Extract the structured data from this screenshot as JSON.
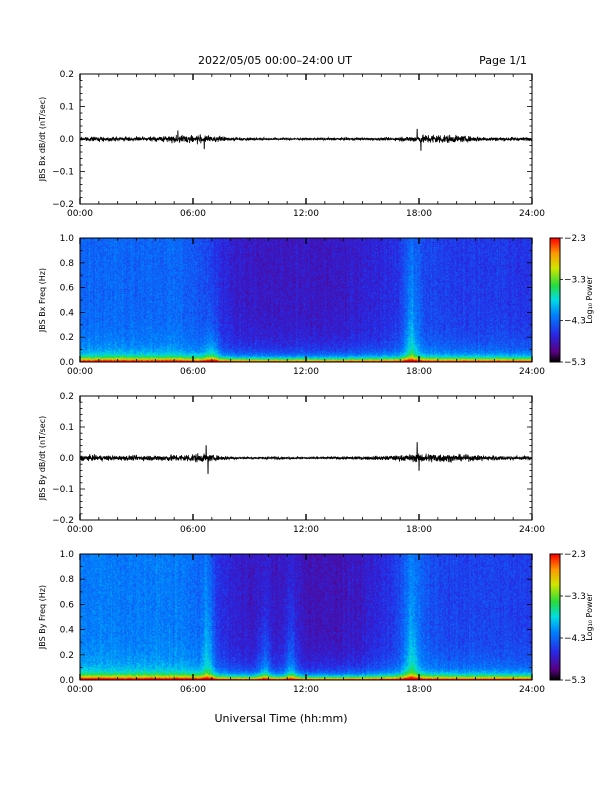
{
  "header": {
    "title": "2022/05/05  00:00–24:00 UT",
    "page": "Page 1/1"
  },
  "xlabel": "Universal Time (hh:mm)",
  "x_ticks": [
    "00:00",
    "06:00",
    "12:00",
    "18:00",
    "24:00"
  ],
  "chart_data": [
    {
      "type": "line",
      "name": "bx-waveform",
      "ylabel": "JBS Bx dB/dt (nT/sec)",
      "xlim": [
        0,
        24
      ],
      "ylim": [
        -0.2,
        0.2
      ],
      "y_ticks": [
        "0.2",
        "0.1",
        "0.0",
        "−0.1",
        "−0.2"
      ],
      "amplitude_by_hour": [
        0.008,
        0.008,
        0.008,
        0.008,
        0.009,
        0.015,
        0.016,
        0.01,
        0.006,
        0.005,
        0.004,
        0.004,
        0.004,
        0.005,
        0.005,
        0.005,
        0.006,
        0.012,
        0.02,
        0.014,
        0.01,
        0.008,
        0.007,
        0.007
      ],
      "spikes": [
        [
          5.2,
          0.025
        ],
        [
          6.6,
          -0.03
        ],
        [
          17.9,
          0.03
        ],
        [
          18.1,
          -0.035
        ]
      ]
    },
    {
      "type": "heatmap",
      "name": "bx-spectrogram",
      "ylabel": "JBS Bx Freq (Hz)",
      "xlim": [
        0,
        24
      ],
      "ylim": [
        0,
        1
      ],
      "y_ticks": [
        "1.0",
        "0.8",
        "0.6",
        "0.4",
        "0.2",
        "0.0"
      ],
      "colorbar": {
        "label": "Log₁₀ Power",
        "range": [
          -5.3,
          -2.3
        ],
        "ticks": [
          "−2.3",
          "−3.3",
          "−4.3",
          "−5.3"
        ]
      },
      "background_by_hour": [
        -4.3,
        -4.3,
        -4.3,
        -4.3,
        -4.3,
        -4.3,
        -4.4,
        -4.6,
        -4.75,
        -4.8,
        -4.8,
        -4.8,
        -4.8,
        -4.8,
        -4.75,
        -4.7,
        -4.6,
        -4.4,
        -4.5,
        -4.55,
        -4.55,
        -4.55,
        -4.55,
        -4.6
      ],
      "enhancements": [
        [
          7.0,
          0.25
        ],
        [
          17.6,
          0.7
        ]
      ]
    },
    {
      "type": "line",
      "name": "by-waveform",
      "ylabel": "JBS By dB/dt (nT/sec)",
      "xlim": [
        0,
        24
      ],
      "ylim": [
        -0.2,
        0.2
      ],
      "y_ticks": [
        "0.2",
        "0.1",
        "0.0",
        "−0.1",
        "−0.2"
      ],
      "amplitude_by_hour": [
        0.012,
        0.011,
        0.01,
        0.01,
        0.012,
        0.014,
        0.018,
        0.01,
        0.005,
        0.004,
        0.004,
        0.004,
        0.004,
        0.005,
        0.006,
        0.008,
        0.01,
        0.016,
        0.02,
        0.014,
        0.012,
        0.01,
        0.008,
        0.008
      ],
      "spikes": [
        [
          6.7,
          0.04
        ],
        [
          6.8,
          -0.05
        ],
        [
          17.9,
          0.05
        ],
        [
          18.0,
          -0.04
        ]
      ]
    },
    {
      "type": "heatmap",
      "name": "by-spectrogram",
      "ylabel": "JBS By Freq (Hz)",
      "xlim": [
        0,
        24
      ],
      "ylim": [
        0,
        1
      ],
      "y_ticks": [
        "1.0",
        "0.8",
        "0.6",
        "0.4",
        "0.2",
        "0.0"
      ],
      "colorbar": {
        "label": "Log₁₀ Power",
        "range": [
          -5.3,
          -2.3
        ],
        "ticks": [
          "−2.3",
          "−3.3",
          "−4.3",
          "−5.3"
        ]
      },
      "background_by_hour": [
        -4.2,
        -4.2,
        -4.2,
        -4.2,
        -4.2,
        -4.2,
        -4.3,
        -4.6,
        -4.75,
        -4.8,
        -4.8,
        -4.8,
        -4.85,
        -4.85,
        -4.8,
        -4.7,
        -4.55,
        -4.3,
        -4.45,
        -4.5,
        -4.5,
        -4.5,
        -4.5,
        -4.55
      ],
      "enhancements": [
        [
          6.8,
          0.9
        ],
        [
          17.6,
          0.8
        ],
        [
          9.8,
          0.45
        ],
        [
          11.2,
          0.5
        ]
      ]
    }
  ]
}
